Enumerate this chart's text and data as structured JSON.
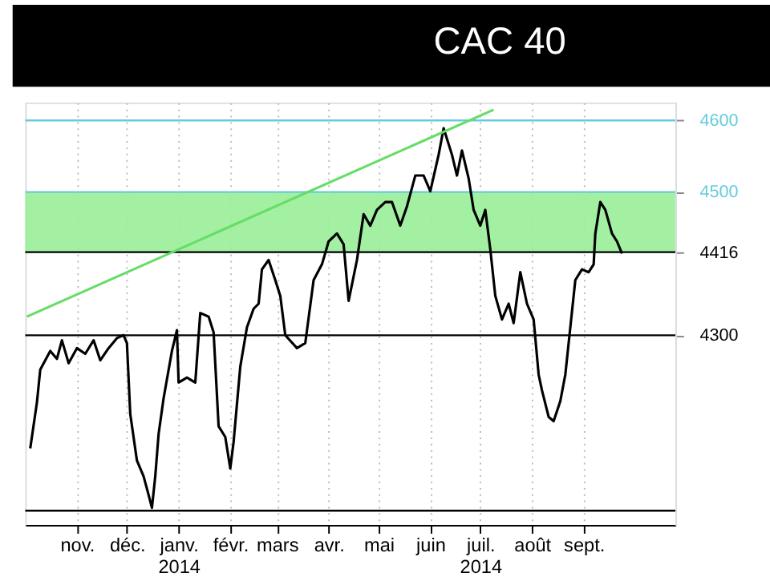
{
  "chart_data": {
    "type": "line",
    "title": "CAC 40",
    "x": [
      "2013-10-04",
      "2013-10-08",
      "2013-10-10",
      "2013-10-16",
      "2013-10-20",
      "2013-10-23",
      "2013-10-27",
      "2013-11-01",
      "2013-11-06",
      "2013-11-11",
      "2013-11-15",
      "2013-11-20",
      "2013-11-25",
      "2013-11-29",
      "2013-12-01",
      "2013-12-03",
      "2013-12-07",
      "2013-12-11",
      "2013-12-14",
      "2013-12-16",
      "2013-12-18",
      "2013-12-20",
      "2013-12-23",
      "2013-12-28",
      "2013-12-31",
      "2014-01-01",
      "2014-01-06",
      "2014-01-11",
      "2014-01-14",
      "2014-01-19",
      "2014-01-22",
      "2014-01-25",
      "2014-01-29",
      "2014-02-01",
      "2014-02-03",
      "2014-02-07",
      "2014-02-11",
      "2014-02-15",
      "2014-02-18",
      "2014-02-20",
      "2014-02-24",
      "2014-02-28",
      "2014-03-03",
      "2014-03-06",
      "2014-03-13",
      "2014-03-18",
      "2014-03-23",
      "2014-03-28",
      "2014-04-01",
      "2014-04-06",
      "2014-04-10",
      "2014-04-13",
      "2014-04-18",
      "2014-04-22",
      "2014-04-26",
      "2014-04-30",
      "2014-05-05",
      "2014-05-09",
      "2014-05-14",
      "2014-05-18",
      "2014-05-23",
      "2014-05-28",
      "2014-06-01",
      "2014-06-06",
      "2014-06-09",
      "2014-06-14",
      "2014-06-17",
      "2014-06-20",
      "2014-06-24",
      "2014-06-27",
      "2014-07-01",
      "2014-07-04",
      "2014-07-07",
      "2014-07-10",
      "2014-07-14",
      "2014-07-18",
      "2014-07-21",
      "2014-07-25",
      "2014-07-29",
      "2014-08-02",
      "2014-08-05",
      "2014-08-07",
      "2014-08-11",
      "2014-08-14",
      "2014-08-18",
      "2014-08-21",
      "2014-08-23",
      "2014-08-27",
      "2014-08-31",
      "2014-09-04",
      "2014-09-07",
      "2014-09-08",
      "2014-09-11",
      "2014-09-14",
      "2014-09-18",
      "2014-09-21",
      "2014-09-24"
    ],
    "series": [
      {
        "color": "#000000",
        "values": [
          4142,
          4206,
          4252,
          4278,
          4267,
          4293,
          4261,
          4282,
          4274,
          4293,
          4265,
          4282,
          4296,
          4300,
          4289,
          4190,
          4125,
          4103,
          4077,
          4059,
          4103,
          4162,
          4212,
          4278,
          4307,
          4234,
          4241,
          4234,
          4331,
          4326,
          4304,
          4173,
          4158,
          4114,
          4151,
          4256,
          4311,
          4337,
          4344,
          4392,
          4405,
          4377,
          4355,
          4300,
          4282,
          4289,
          4377,
          4399,
          4431,
          4442,
          4427,
          4348,
          4405,
          4469,
          4453,
          4475,
          4486,
          4486,
          4453,
          4480,
          4523,
          4523,
          4501,
          4552,
          4589,
          4552,
          4523,
          4558,
          4519,
          4475,
          4453,
          4475,
          4420,
          4355,
          4322,
          4344,
          4317,
          4388,
          4344,
          4322,
          4245,
          4223,
          4186,
          4180,
          4208,
          4245,
          4289,
          4377,
          4392,
          4388,
          4399,
          4442,
          4486,
          4475,
          4442,
          4431,
          4414
        ]
      },
      {
        "type": "line",
        "color": "#66dd66",
        "x": [
          "2013-10-02",
          "2014-07-09"
        ],
        "values": [
          4326,
          4615
        ]
      }
    ],
    "xlim": [
      "2013-10-01",
      "2014-10-26"
    ],
    "xticks": [
      {
        "value": "2013-11-01",
        "label": "nov."
      },
      {
        "value": "2013-12-01",
        "label": "déc."
      },
      {
        "value": "2014-01-01",
        "label": "janv.\n2014"
      },
      {
        "value": "2014-02-01",
        "label": "févr."
      },
      {
        "value": "2014-03-01",
        "label": "mars"
      },
      {
        "value": "2014-04-01",
        "label": "avr."
      },
      {
        "value": "2014-05-01",
        "label": "mai"
      },
      {
        "value": "2014-06-01",
        "label": "juin"
      },
      {
        "value": "2014-07-01",
        "label": "juil.\n2014"
      },
      {
        "value": "2014-08-01",
        "label": "août"
      },
      {
        "value": "2014-09-01",
        "label": "sept."
      }
    ],
    "ylim": [
      4035,
      4625
    ],
    "yticks": [
      4300,
      4416,
      4500,
      4600
    ],
    "ref_lines": [
      {
        "axis": "y",
        "value": 4600,
        "color": "#66ccdd"
      },
      {
        "axis": "y",
        "value": 4500,
        "color": "#66ccdd"
      },
      {
        "axis": "y",
        "value": 4416,
        "color": "#000000"
      },
      {
        "axis": "y",
        "value": 4300,
        "color": "#000000"
      },
      {
        "axis": "y",
        "value": 4055,
        "color": "#000000"
      }
    ],
    "bands": [
      {
        "axis": "y",
        "from": 4416,
        "to": 4500,
        "color": "#99ee99"
      }
    ],
    "grid": "x",
    "line_style": "solid"
  }
}
